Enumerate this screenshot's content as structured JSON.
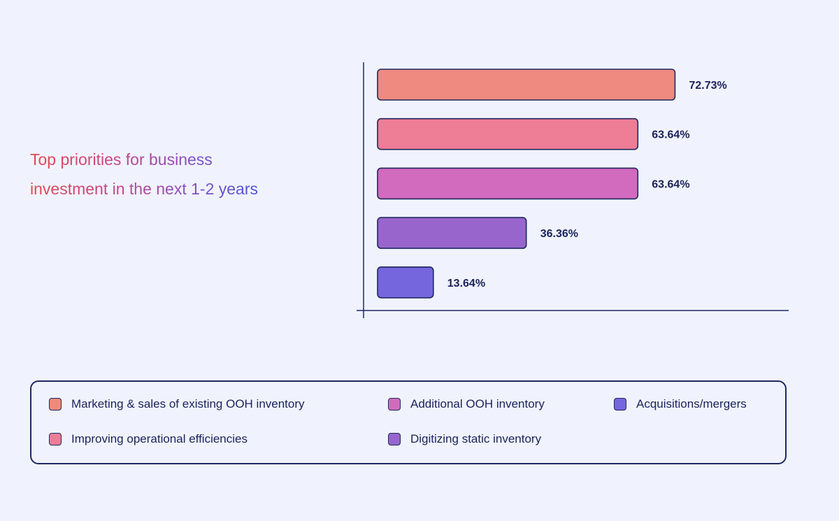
{
  "chart_data": {
    "type": "bar",
    "orientation": "horizontal",
    "title": "Top priorities for business investment in the next 1-2 years",
    "title_lines": [
      "Top priorities for business",
      "investment in the next 1-2 years"
    ],
    "categories": [
      "Marketing & sales of existing OOH inventory",
      "Improving operational efficiencies",
      "Additional OOH inventory",
      "Digitizing static inventory",
      "Acquisitions/mergers"
    ],
    "values": [
      72.73,
      63.64,
      63.64,
      36.36,
      13.64
    ],
    "value_labels": [
      "72.73%",
      "63.64%",
      "63.64%",
      "36.36%",
      "13.64%"
    ],
    "colors": [
      "#ef8a80",
      "#ee7d96",
      "#d26bbd",
      "#9865cd",
      "#7566dd"
    ],
    "xlim": [
      0,
      100
    ],
    "grid": false,
    "legend_position": "bottom"
  },
  "legend": {
    "items": [
      {
        "label": "Marketing & sales of existing OOH inventory",
        "color": "#ef8a80"
      },
      {
        "label": "Improving operational efficiencies",
        "color": "#ee7d96"
      },
      {
        "label": "Additional OOH inventory",
        "color": "#d26bbd"
      },
      {
        "label": "Digitizing static inventory",
        "color": "#9865cd"
      },
      {
        "label": "Acquisitions/mergers",
        "color": "#7566dd"
      }
    ]
  },
  "colors": {
    "background": "#f0f3fd",
    "ink": "#1f2960",
    "label": "#1a2259"
  }
}
